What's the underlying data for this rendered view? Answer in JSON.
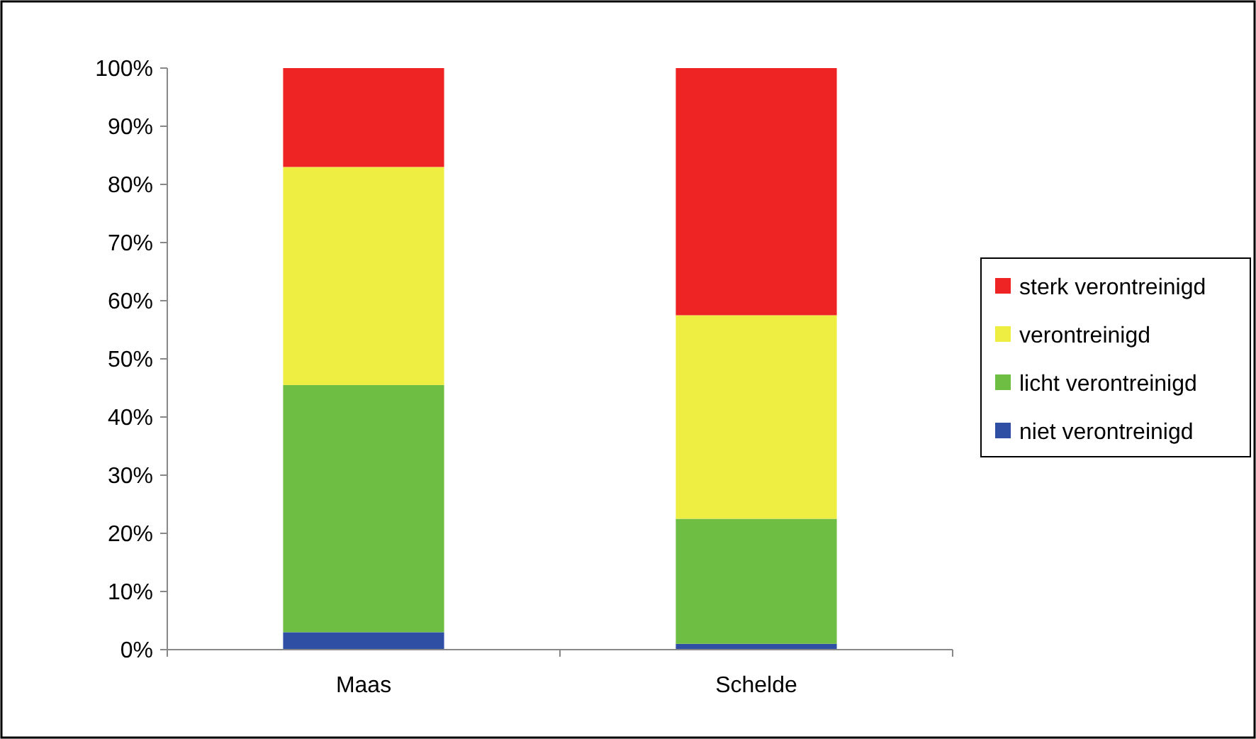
{
  "chart_data": {
    "type": "bar",
    "stacked": true,
    "categories": [
      "Maas",
      "Schelde"
    ],
    "series": [
      {
        "name": "niet verontreinigd",
        "color": "#2e4fa3",
        "values": [
          3,
          1
        ]
      },
      {
        "name": "licht verontreinigd",
        "color": "#6fbe44",
        "values": [
          42.5,
          21.5
        ]
      },
      {
        "name": "verontreinigd",
        "color": "#eded42",
        "values": [
          37.5,
          35
        ]
      },
      {
        "name": "sterk verontreinigd",
        "color": "#ee2424",
        "values": [
          17,
          42.5
        ]
      }
    ],
    "ylim": [
      0,
      100
    ],
    "yticks": [
      {
        "value": 0,
        "label": "0%"
      },
      {
        "value": 10,
        "label": "10%"
      },
      {
        "value": 20,
        "label": "20%"
      },
      {
        "value": 30,
        "label": "30%"
      },
      {
        "value": 40,
        "label": "40%"
      },
      {
        "value": 50,
        "label": "50%"
      },
      {
        "value": 60,
        "label": "60%"
      },
      {
        "value": 70,
        "label": "70%"
      },
      {
        "value": 80,
        "label": "80%"
      },
      {
        "value": 90,
        "label": "90%"
      },
      {
        "value": 100,
        "label": "100%"
      }
    ],
    "grid": false,
    "legend": "right"
  }
}
